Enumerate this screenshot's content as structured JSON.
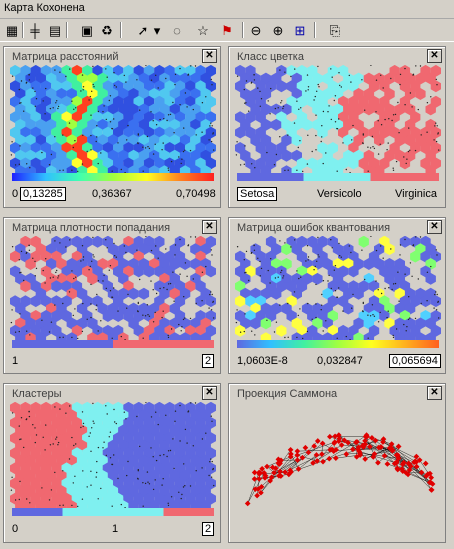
{
  "window": {
    "title": "Карта Кохонена"
  },
  "toolbar": {
    "buttons": [
      {
        "icon": "grid-icon",
        "glyph": "▦"
      },
      {
        "icon": "axes-icon",
        "glyph": "╪"
      },
      {
        "icon": "layers-icon",
        "glyph": "▤"
      },
      {
        "icon": "properties-icon",
        "glyph": "▣"
      },
      {
        "icon": "refresh-icon",
        "glyph": "♻"
      },
      {
        "icon": "select-cursor-icon",
        "glyph": "➚"
      },
      {
        "icon": "dropdown-arrow-icon",
        "glyph": "▾"
      },
      {
        "icon": "lasso-icon",
        "glyph": "◌"
      },
      {
        "icon": "star-select-icon",
        "glyph": "☆"
      },
      {
        "icon": "flag-icon",
        "glyph": "⚑"
      },
      {
        "icon": "zoom-out-icon",
        "glyph": "⊖"
      },
      {
        "icon": "zoom-in-icon",
        "glyph": "⊕"
      },
      {
        "icon": "fit-window-icon",
        "glyph": "⊞"
      },
      {
        "icon": "export-icon",
        "glyph": "⎘"
      }
    ]
  },
  "panels": [
    {
      "title": "Матрица расстояний",
      "scale": {
        "min": "0",
        "sel": "0,13285",
        "mid": "0,36367",
        "max": "0,70498"
      }
    },
    {
      "title": "Класс цветка",
      "scale": {
        "a": "Setosa",
        "b": "Versicolo",
        "c": "Virginica"
      }
    },
    {
      "title": "Матрица плотности попадания",
      "scale": {
        "min": "1",
        "max": "2"
      }
    },
    {
      "title": "Матрица ошибок квантования",
      "scale": {
        "min": "1,0603E-8",
        "mid": "0,032847",
        "max": "0,065694"
      }
    },
    {
      "title": "Кластеры",
      "scale": {
        "min": "0",
        "mid": "1",
        "max": "2"
      }
    },
    {
      "title": "Проекция Саммона"
    }
  ],
  "colors": {
    "setosa": "#5f68e0",
    "versicolor": "#7ff0f0",
    "virginica": "#f06870",
    "background": "#d4d0c8"
  }
}
